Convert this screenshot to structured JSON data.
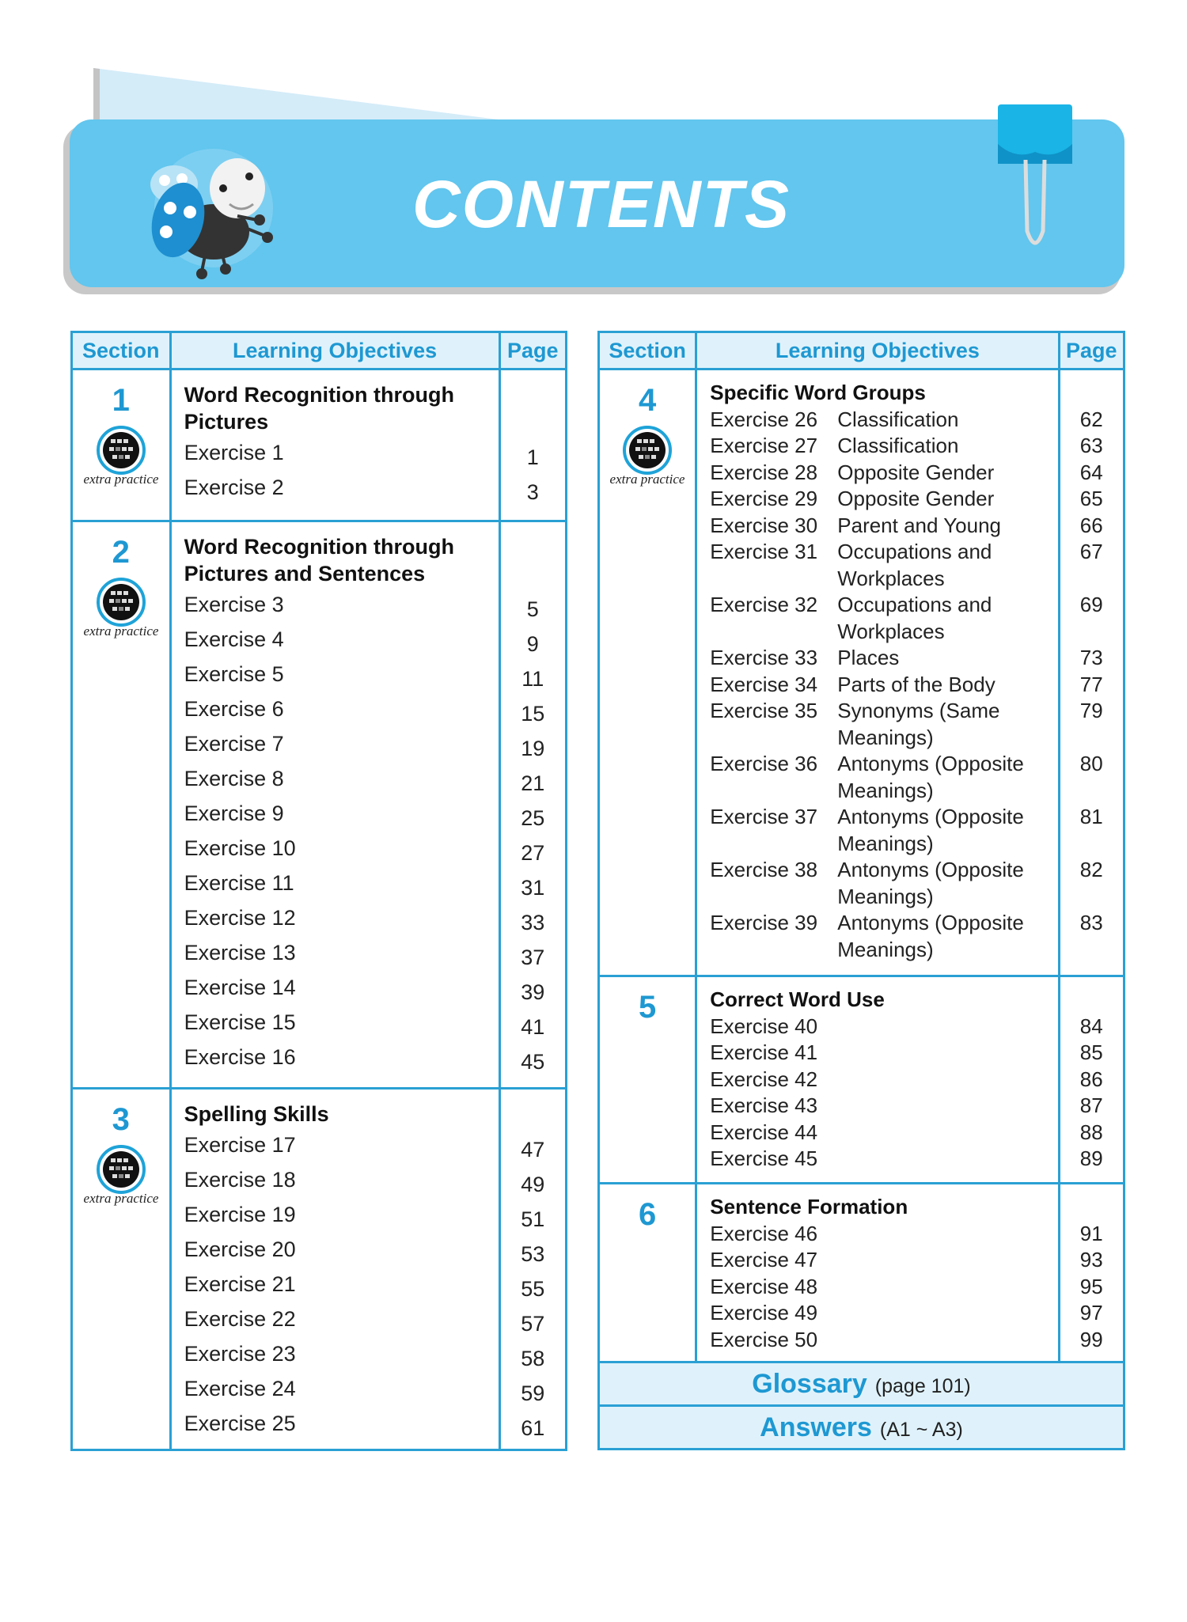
{
  "header": {
    "title": "CONTENTS"
  },
  "columns": {
    "section": "Section",
    "objectives": "Learning Objectives",
    "page": "Page"
  },
  "extra_practice_label": "extra practice",
  "colors": {
    "accent": "#1e98d2",
    "banner": "#62c6ee",
    "header_bg": "#dff2fb"
  },
  "left_sections": [
    {
      "number": "1",
      "title": "Word Recognition through Pictures",
      "extra_practice": true,
      "exercises": [
        {
          "label": "Exercise 1",
          "page": "1"
        },
        {
          "label": "Exercise 2",
          "page": "3"
        }
      ]
    },
    {
      "number": "2",
      "title": "Word Recognition through Pictures and Sentences",
      "extra_practice": true,
      "exercises": [
        {
          "label": "Exercise 3",
          "page": "5"
        },
        {
          "label": "Exercise 4",
          "page": "9"
        },
        {
          "label": "Exercise 5",
          "page": "11"
        },
        {
          "label": "Exercise 6",
          "page": "15"
        },
        {
          "label": "Exercise 7",
          "page": "19"
        },
        {
          "label": "Exercise 8",
          "page": "21"
        },
        {
          "label": "Exercise 9",
          "page": "25"
        },
        {
          "label": "Exercise 10",
          "page": "27"
        },
        {
          "label": "Exercise 11",
          "page": "31"
        },
        {
          "label": "Exercise 12",
          "page": "33"
        },
        {
          "label": "Exercise 13",
          "page": "37"
        },
        {
          "label": "Exercise 14",
          "page": "39"
        },
        {
          "label": "Exercise 15",
          "page": "41"
        },
        {
          "label": "Exercise 16",
          "page": "45"
        }
      ]
    },
    {
      "number": "3",
      "title": "Spelling Skills",
      "extra_practice": true,
      "exercises": [
        {
          "label": "Exercise 17",
          "page": "47"
        },
        {
          "label": "Exercise 18",
          "page": "49"
        },
        {
          "label": "Exercise 19",
          "page": "51"
        },
        {
          "label": "Exercise 20",
          "page": "53"
        },
        {
          "label": "Exercise 21",
          "page": "55"
        },
        {
          "label": "Exercise 22",
          "page": "57"
        },
        {
          "label": "Exercise 23",
          "page": "58"
        },
        {
          "label": "Exercise 24",
          "page": "59"
        },
        {
          "label": "Exercise 25",
          "page": "61"
        }
      ]
    }
  ],
  "right_sections": [
    {
      "number": "4",
      "title": "Specific Word Groups",
      "extra_practice": true,
      "exercises": [
        {
          "label": "Exercise 26",
          "desc": "Classification",
          "page": "62"
        },
        {
          "label": "Exercise 27",
          "desc": "Classification",
          "page": "63"
        },
        {
          "label": "Exercise 28",
          "desc": "Opposite Gender",
          "page": "64"
        },
        {
          "label": "Exercise 29",
          "desc": "Opposite Gender",
          "page": "65"
        },
        {
          "label": "Exercise 30",
          "desc": "Parent and Young",
          "page": "66"
        },
        {
          "label": "Exercise 31",
          "desc": "Occupations and Workplaces",
          "page": "67"
        },
        {
          "label": "Exercise 32",
          "desc": "Occupations and Workplaces",
          "page": "69"
        },
        {
          "label": "Exercise 33",
          "desc": "Places",
          "page": "73"
        },
        {
          "label": "Exercise 34",
          "desc": "Parts of the Body",
          "page": "77"
        },
        {
          "label": "Exercise 35",
          "desc": "Synonyms (Same Meanings)",
          "page": "79"
        },
        {
          "label": "Exercise 36",
          "desc": "Antonyms (Opposite Meanings)",
          "page": "80"
        },
        {
          "label": "Exercise 37",
          "desc": "Antonyms (Opposite Meanings)",
          "page": "81"
        },
        {
          "label": "Exercise 38",
          "desc": "Antonyms (Opposite Meanings)",
          "page": "82"
        },
        {
          "label": "Exercise 39",
          "desc": "Antonyms (Opposite Meanings)",
          "page": "83"
        }
      ]
    },
    {
      "number": "5",
      "title": "Correct Word Use",
      "extra_practice": false,
      "exercises": [
        {
          "label": "Exercise 40",
          "desc": "",
          "page": "84"
        },
        {
          "label": "Exercise 41",
          "desc": "",
          "page": "85"
        },
        {
          "label": "Exercise 42",
          "desc": "",
          "page": "86"
        },
        {
          "label": "Exercise 43",
          "desc": "",
          "page": "87"
        },
        {
          "label": "Exercise 44",
          "desc": "",
          "page": "88"
        },
        {
          "label": "Exercise 45",
          "desc": "",
          "page": "89"
        }
      ]
    },
    {
      "number": "6",
      "title": "Sentence Formation",
      "extra_practice": false,
      "exercises": [
        {
          "label": "Exercise 46",
          "desc": "",
          "page": "91"
        },
        {
          "label": "Exercise 47",
          "desc": "",
          "page": "93"
        },
        {
          "label": "Exercise 48",
          "desc": "",
          "page": "95"
        },
        {
          "label": "Exercise 49",
          "desc": "",
          "page": "97"
        },
        {
          "label": "Exercise 50",
          "desc": "",
          "page": "99"
        }
      ]
    }
  ],
  "glossary": {
    "label": "Glossary",
    "note": "(page 101)"
  },
  "answers": {
    "label": "Answers",
    "note": "(A1 ~ A3)"
  }
}
